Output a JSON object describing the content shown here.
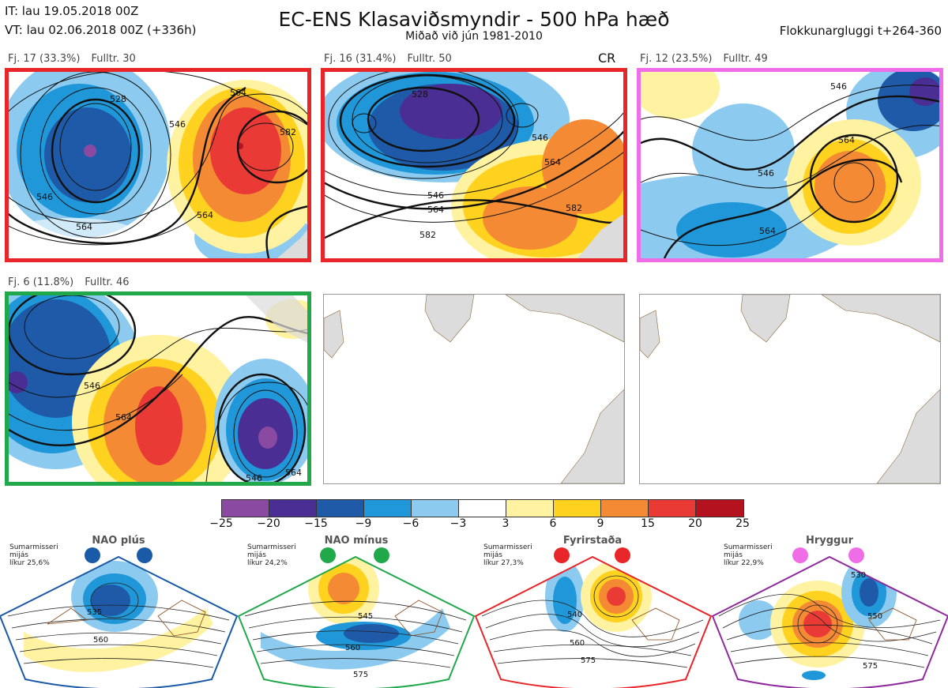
{
  "header": {
    "it_line": "IT: lau 19.05.2018 00Z",
    "vt_line": "VT: lau 02.06.2018 00Z  (+336h)",
    "title": "EC-ENS Klasaviðsmyndir - 500 hPa hæð",
    "subtitle": "Miðað við jún 1981-2010",
    "window": "Flokkunargluggi t+264-360"
  },
  "panels": [
    {
      "id": "p1",
      "label_fj": "Fj. 17 (33.3%)",
      "label_fulltr": "Fulltr. 30",
      "border_color": "#e8262a",
      "regime": "Fyrirstaða",
      "contour_labels": [
        "528",
        "546",
        "564",
        "564",
        "582",
        "546",
        "564"
      ]
    },
    {
      "id": "p2",
      "label_fj": "Fj. 16 (31.4%)",
      "label_fulltr": "Fulltr. 50",
      "border_color": "#e8262a",
      "regime": "Fyrirstaða",
      "badge": "CR",
      "contour_labels": [
        "528",
        "546",
        "546",
        "564",
        "564",
        "582",
        "582"
      ]
    },
    {
      "id": "p3",
      "label_fj": "Fj. 12 (23.5%)",
      "label_fulltr": "Fulltr. 49",
      "border_color": "#ef6ee8",
      "regime": "Hryggur",
      "contour_labels": [
        "546",
        "546",
        "564",
        "564"
      ]
    },
    {
      "id": "p4",
      "label_fj": "Fj. 6 (11.8%)",
      "label_fulltr": "Fulltr. 46",
      "border_color": "#21a84a",
      "regime": "NAO mínus",
      "contour_labels": [
        "546",
        "564",
        "546",
        "564"
      ]
    }
  ],
  "colorbar": {
    "ticks": [
      "−25",
      "−20",
      "−15",
      "−9",
      "−6",
      "−3",
      "3",
      "6",
      "9",
      "15",
      "20",
      "25"
    ],
    "colors": [
      "#8a4aa2",
      "#4b2e94",
      "#1e5aa8",
      "#1f97d8",
      "#8ccbef",
      "#ffffff",
      "#fff2a0",
      "#ffd21f",
      "#f58a34",
      "#ea3a36",
      "#b4121e"
    ]
  },
  "regimes": [
    {
      "id": "nao_plus",
      "name": "NAO plús",
      "season": "Sumarmisseri\nmijás\nlíkur 25,6%",
      "color": "#1a5aa6",
      "labels": [
        "535",
        "560"
      ]
    },
    {
      "id": "nao_minus",
      "name": "NAO mínus",
      "season": "Sumarmisseri\nmijás\nlíkur 24,2%",
      "color": "#21a84a",
      "labels": [
        "545",
        "560",
        "575"
      ]
    },
    {
      "id": "blocking",
      "name": "Fyrirstaða",
      "season": "Sumarmisseri\nmijás\nlíkur 27,3%",
      "color": "#e8262a",
      "labels": [
        "540",
        "560",
        "575"
      ]
    },
    {
      "id": "ridge",
      "name": "Hryggur",
      "season": "Sumarmisseri\nmijás\nlíkur 22,9%",
      "color": "#8e2a9c",
      "labels": [
        "530",
        "550",
        "575"
      ]
    }
  ]
}
